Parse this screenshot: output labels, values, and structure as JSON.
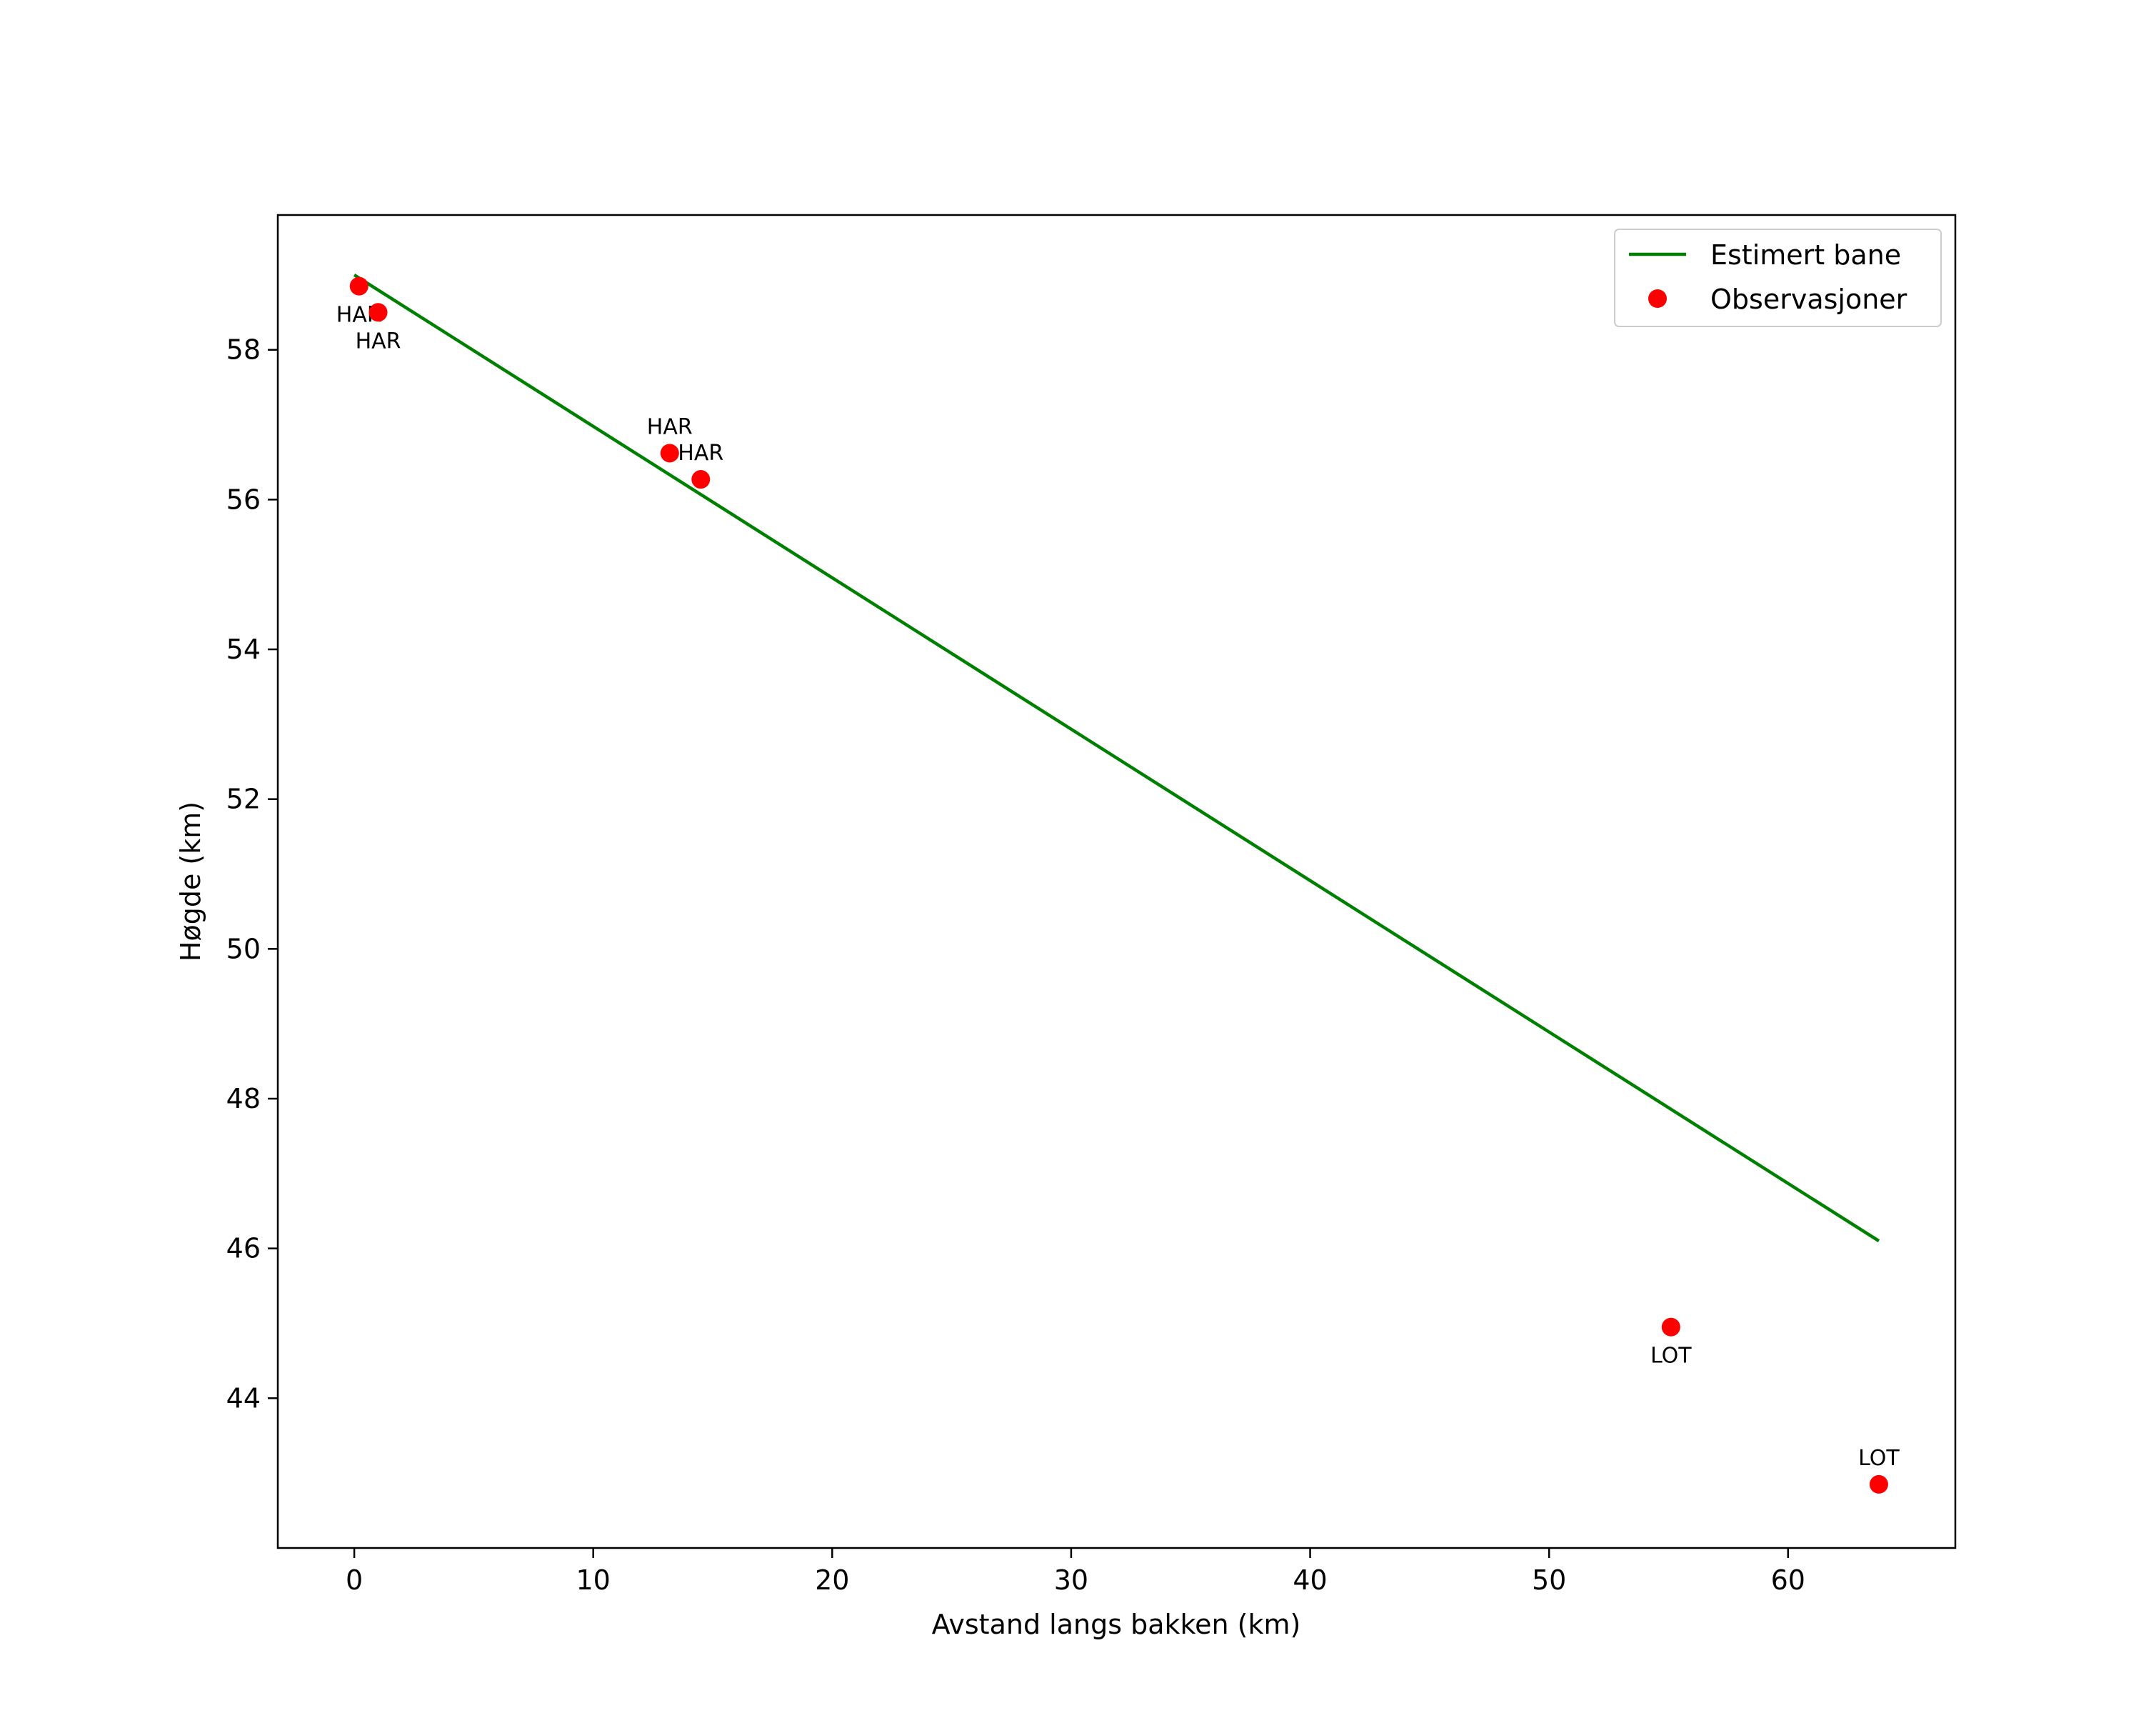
{
  "chart_data": {
    "type": "scatter",
    "title": "",
    "xlabel": "Avstand langs bakken (km)",
    "ylabel": "Høgde (km)",
    "xlim": [
      -3.2,
      67
    ],
    "ylim": [
      42.0,
      59.8
    ],
    "xticks": [
      0,
      10,
      20,
      30,
      40,
      50,
      60
    ],
    "yticks": [
      44,
      46,
      48,
      50,
      52,
      54,
      56,
      58
    ],
    "grid": false,
    "legend_position": "top-right",
    "colors": {
      "line": "#008000",
      "points": "#ff0000"
    },
    "series": [
      {
        "name": "Estimert bane",
        "kind": "line",
        "x": [
          0.0,
          63.8
        ],
        "y": [
          59.0,
          46.1
        ]
      },
      {
        "name": "Observasjoner",
        "kind": "scatter",
        "points": [
          {
            "x": 0.2,
            "y": 58.85,
            "label": "HAR",
            "label_side": "below"
          },
          {
            "x": 1.0,
            "y": 58.5,
            "label": "HAR",
            "label_side": "below"
          },
          {
            "x": 13.2,
            "y": 56.62,
            "label": "HAR",
            "label_side": "above"
          },
          {
            "x": 14.5,
            "y": 56.27,
            "label": "HAR",
            "label_side": "above"
          },
          {
            "x": 55.1,
            "y": 44.95,
            "label": "LOT",
            "label_side": "below"
          },
          {
            "x": 63.8,
            "y": 42.85,
            "label": "LOT",
            "label_side": "above"
          }
        ]
      }
    ]
  }
}
